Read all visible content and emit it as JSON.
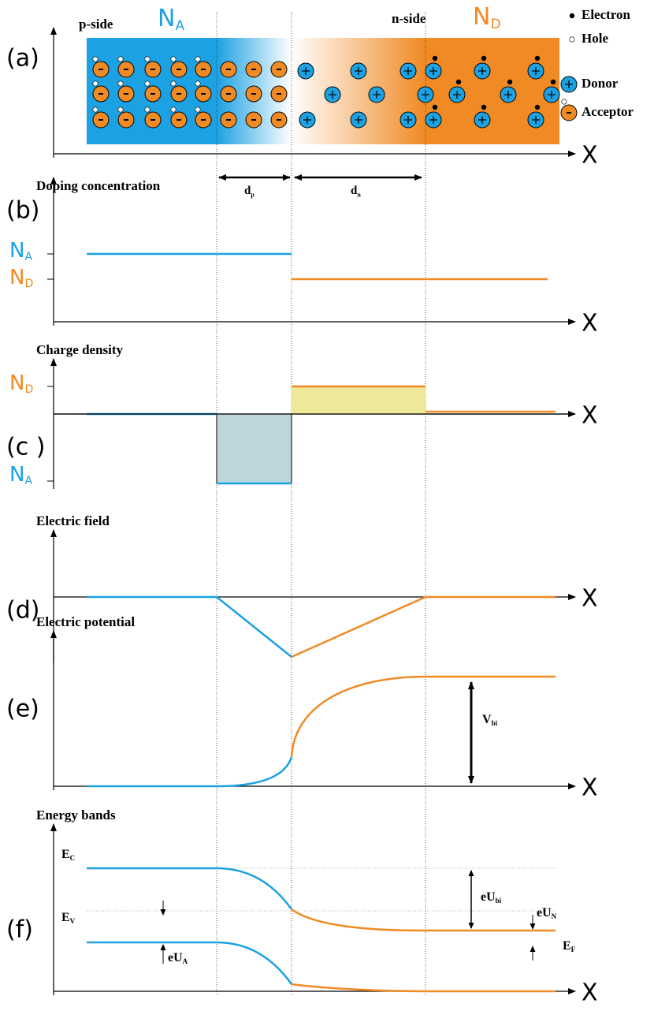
{
  "panel_a": {
    "label": "(a)",
    "p_side": "p-side",
    "n_side": "n-side",
    "NA": {
      "base": "N",
      "sub": "A"
    },
    "ND": {
      "base": "N",
      "sub": "D"
    },
    "legend": [
      "Electron",
      "Hole",
      "Donor",
      "Acceptor"
    ],
    "x_axis": "X"
  },
  "widths": {
    "dp": {
      "base": "d",
      "sub": "p"
    },
    "dn": {
      "base": "d",
      "sub": "n"
    }
  },
  "panel_b": {
    "label": "(b)",
    "title": "Doping concentration",
    "NA": {
      "base": "N",
      "sub": "A"
    },
    "ND": {
      "base": "N",
      "sub": "D"
    },
    "x_axis": "X"
  },
  "panel_c": {
    "label": "(c )",
    "title": "Charge density",
    "ND": {
      "base": "N",
      "sub": "D"
    },
    "NA": {
      "base": "N",
      "sub": "A"
    },
    "x_axis": "X"
  },
  "panel_d": {
    "label": "(d)",
    "title": "Electric field",
    "x_axis": "X"
  },
  "panel_e": {
    "label": "(e)",
    "title": "Electric potential",
    "Vbi": {
      "base": "V",
      "sub": "bi"
    },
    "x_axis": "X"
  },
  "panel_f": {
    "label": "(f)",
    "title": "Energy bands",
    "EC": {
      "base": "E",
      "sub": "C"
    },
    "EV": {
      "base": "E",
      "sub": "V"
    },
    "eUA": {
      "base": "eU",
      "sub": "A"
    },
    "eUbi": {
      "base": "eU",
      "sub": "bi"
    },
    "eUN": {
      "base": "eU",
      "sub": "N"
    },
    "EF": {
      "base": "E",
      "sub": "F"
    },
    "x_axis": "X"
  }
}
